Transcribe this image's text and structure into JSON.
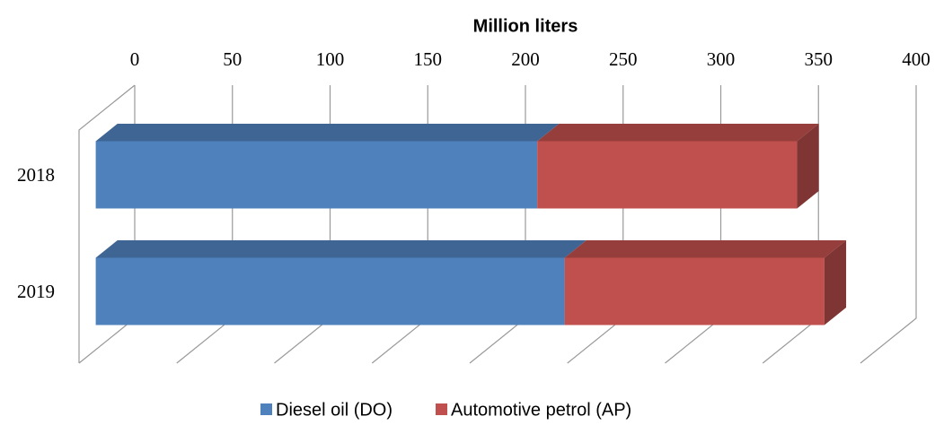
{
  "chart_data": {
    "type": "bar3d_stacked_horizontal",
    "x_label": "Million liters",
    "categories": [
      "2018",
      "2019"
    ],
    "series": [
      {
        "name": "Diesel oil (DO)",
        "color": "#4f81bd",
        "values": [
          226,
          240
        ]
      },
      {
        "name": "Automotive petrol (AP)",
        "color": "#c0504d",
        "values": [
          133,
          133
        ]
      }
    ],
    "xlim": [
      0,
      400
    ],
    "xticks": [
      0,
      50,
      100,
      150,
      200,
      250,
      300,
      350,
      400
    ],
    "grid": true,
    "legend": "bottom"
  }
}
